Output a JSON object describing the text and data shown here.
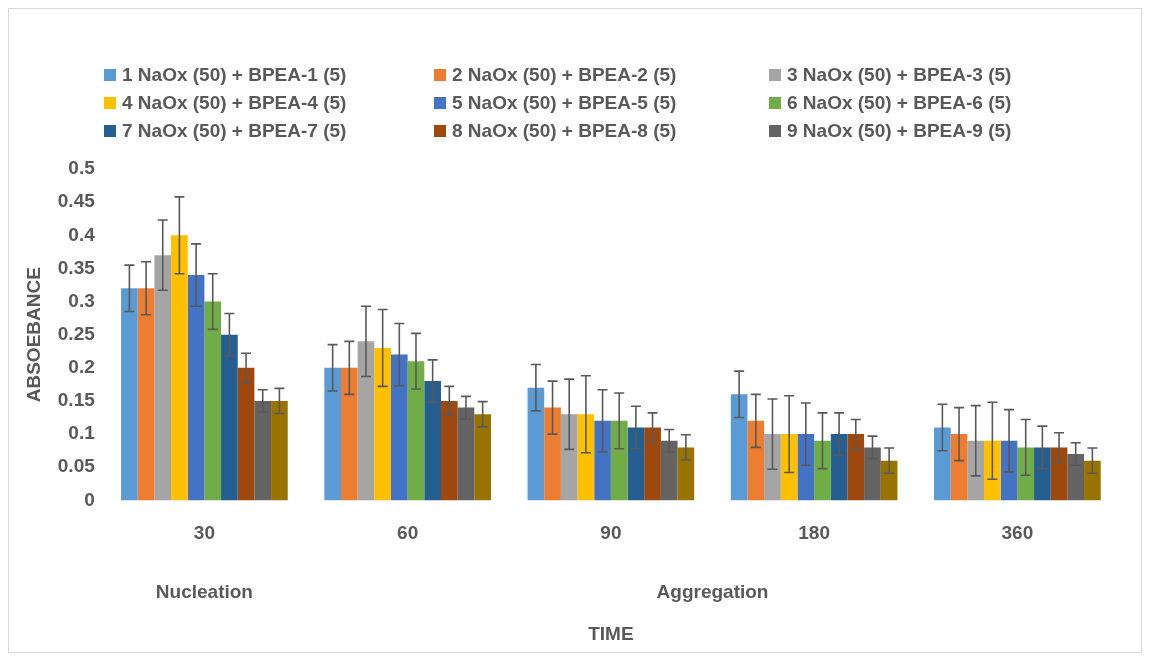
{
  "chart_data": {
    "type": "bar",
    "xlabel": "TIME",
    "ylabel": "ABSOEBANCE",
    "categories": [
      "30",
      "60",
      "90",
      "180",
      "360"
    ],
    "ylim": [
      0,
      0.5
    ],
    "yticks": [
      0,
      0.05,
      0.1,
      0.15,
      0.2,
      0.25,
      0.3,
      0.35,
      0.4,
      0.45,
      0.5
    ],
    "grid": false,
    "legend": "top",
    "annotations": [
      "Nucleation",
      "Aggregation"
    ],
    "series": [
      {
        "name": "1 NaOx (50) + BPEA-1 (5)",
        "color": "#5b9bd5",
        "values": [
          0.32,
          0.2,
          0.17,
          0.16,
          0.11
        ],
        "errors": [
          0.035,
          0.035,
          0.035,
          0.035,
          0.035
        ]
      },
      {
        "name": "2 NaOx (50) + BPEA-2 (5)",
        "color": "#ed7d31",
        "values": [
          0.32,
          0.2,
          0.14,
          0.12,
          0.1
        ],
        "errors": [
          0.04,
          0.04,
          0.04,
          0.04,
          0.04
        ]
      },
      {
        "name": "3 NaOx (50) + BPEA-3 (5)",
        "color": "#a5a5a5",
        "values": [
          0.37,
          0.24,
          0.13,
          0.1,
          0.09
        ],
        "errors": [
          0.053,
          0.053,
          0.053,
          0.053,
          0.053
        ]
      },
      {
        "name": "4 NaOx (50) + BPEA-4 (5)",
        "color": "#ffc000",
        "values": [
          0.4,
          0.23,
          0.13,
          0.1,
          0.09
        ],
        "errors": [
          0.058,
          0.058,
          0.058,
          0.058,
          0.058
        ]
      },
      {
        "name": "5 NaOx (50) + BPEA-5 (5)",
        "color": "#4472c4",
        "values": [
          0.34,
          0.22,
          0.12,
          0.1,
          0.09
        ],
        "errors": [
          0.047,
          0.047,
          0.047,
          0.047,
          0.047
        ]
      },
      {
        "name": "6 NaOx (50) + BPEA-6 (5)",
        "color": "#70ad47",
        "values": [
          0.3,
          0.21,
          0.12,
          0.09,
          0.08
        ],
        "errors": [
          0.042,
          0.042,
          0.042,
          0.042,
          0.042
        ]
      },
      {
        "name": "7 NaOx (50) + BPEA-7 (5)",
        "color": "#255e91",
        "values": [
          0.25,
          0.18,
          0.11,
          0.1,
          0.08
        ],
        "errors": [
          0.032,
          0.032,
          0.032,
          0.032,
          0.032
        ]
      },
      {
        "name": "8 NaOx (50) + BPEA-8 (5)",
        "color": "#9e480e",
        "values": [
          0.2,
          0.15,
          0.11,
          0.1,
          0.08
        ],
        "errors": [
          0.022,
          0.022,
          0.022,
          0.022,
          0.022
        ]
      },
      {
        "name": "9 NaOx (50) + BPEA-9 (5)",
        "color": "#636363",
        "values": [
          0.15,
          0.14,
          0.09,
          0.08,
          0.07
        ],
        "errors": [
          0.017,
          0.017,
          0.017,
          0.017,
          0.017
        ]
      },
      {
        "color": "#997300",
        "values": [
          0.15,
          0.13,
          0.08,
          0.06,
          0.06
        ],
        "errors": [
          0.019,
          0.019,
          0.019,
          0.019,
          0.019
        ]
      }
    ]
  }
}
